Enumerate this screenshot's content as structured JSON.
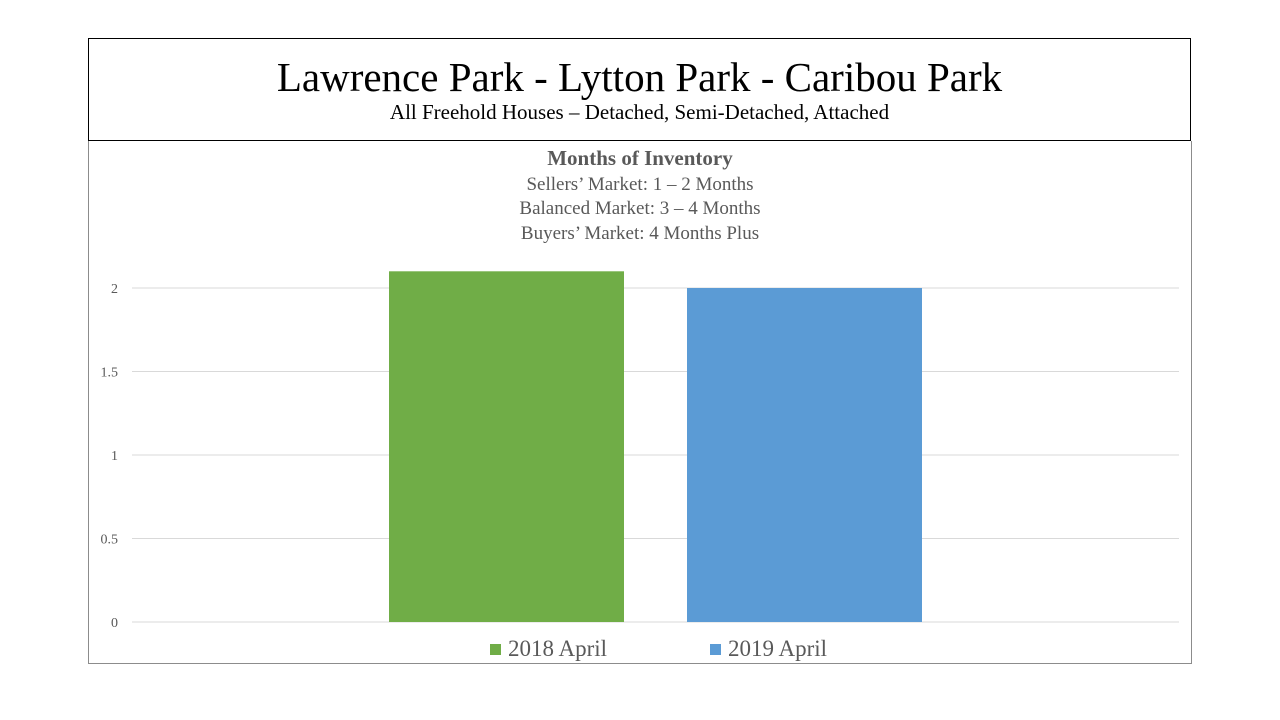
{
  "header": {
    "title": "Lawrence Park - Lytton Park - Caribou Park",
    "subtitle": "All Freehold Houses – Detached, Semi-Detached, Attached"
  },
  "chart": {
    "title": "Months of Inventory",
    "notes": [
      "Sellers’ Market:  1 – 2 Months",
      "Balanced Market:  3 – 4 Months",
      "Buyers’ Market:  4 Months Plus"
    ]
  },
  "chart_data": {
    "type": "bar",
    "categories": [
      "2018 April",
      "2019 April"
    ],
    "values": [
      2.1,
      2.0
    ],
    "colors": [
      "#70ad47",
      "#5b9bd5"
    ],
    "ylim": [
      0,
      2.2
    ],
    "yticks": [
      "0",
      "0.5",
      "1",
      "1.5",
      "2"
    ],
    "grid": true,
    "legend": "bottom"
  }
}
